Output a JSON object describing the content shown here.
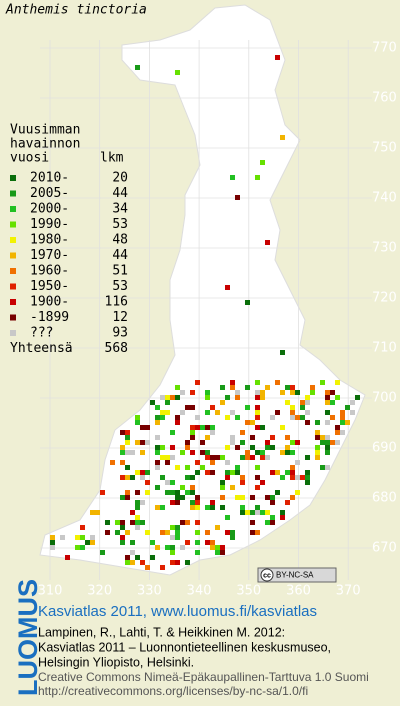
{
  "title": "Anthemis tinctoria",
  "legend": {
    "heading": [
      "Vuusimman",
      "havainnon",
      "vuosi"
    ],
    "count_heading": "lkm",
    "rows": [
      {
        "label": "2010-",
        "count": 20,
        "color": "#0a6e0a"
      },
      {
        "label": "2005-",
        "count": 44,
        "color": "#189a18"
      },
      {
        "label": "2000-",
        "count": 34,
        "color": "#22c022"
      },
      {
        "label": "1990-",
        "count": 53,
        "color": "#66e000"
      },
      {
        "label": "1980-",
        "count": 48,
        "color": "#f2f200"
      },
      {
        "label": "1970-",
        "count": 44,
        "color": "#f2b400"
      },
      {
        "label": "1960-",
        "count": 51,
        "color": "#f07000"
      },
      {
        "label": "1950-",
        "count": 53,
        "color": "#e02000"
      },
      {
        "label": "1900-",
        "count": 116,
        "color": "#c80000"
      },
      {
        "label": "-1899",
        "count": 12,
        "color": "#780000"
      },
      {
        "label": "???",
        "count": 93,
        "color": "#c8c8c8"
      }
    ],
    "total_label": "Yhteensä",
    "total": 568
  },
  "grid": {
    "north": [
      770,
      760,
      750,
      740,
      730,
      720,
      710,
      700,
      690,
      680,
      670
    ],
    "east": [
      310,
      320,
      330,
      340,
      350,
      360,
      370
    ]
  },
  "license_badge": {
    "icon": "cc",
    "label": "BY-NC-SA"
  },
  "footer": {
    "brand": "LUOMUS",
    "headline": "Kasviatlas 2011, www.luomus.fi/kasviatlas",
    "citation": [
      "Lampinen, R., Lahti, T. & Heikkinen M. 2012:",
      "Kasviatlas 2011 – Luonnontieteellinen keskusmuseo,",
      "Helsingin Yliopisto, Helsinki."
    ],
    "license": [
      "Creative Commons Nimeä-Epäkaupallinen-Tarttuva 1.0 Suomi",
      "http://creativecommons.org/licenses/by-nc-sa/1.0/fi"
    ]
  }
}
